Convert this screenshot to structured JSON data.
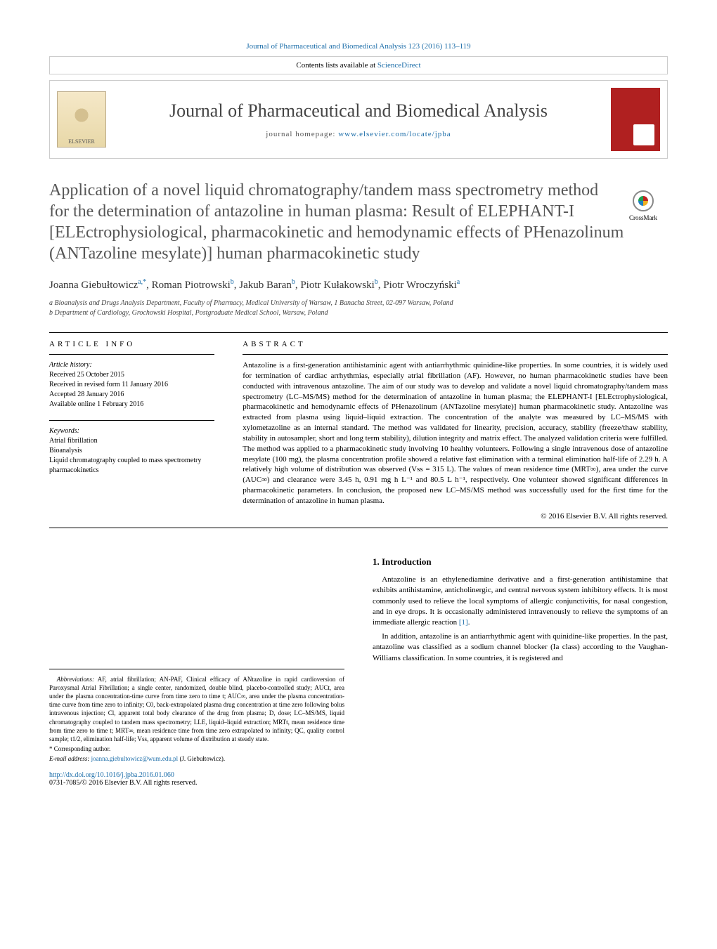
{
  "colors": {
    "link": "#1a6ca8",
    "title_gray": "#555555",
    "cover_red": "#b02020",
    "text": "#000000"
  },
  "typography": {
    "body_font": "Georgia, Times New Roman, serif",
    "journal_name_size": 26,
    "article_title_size": 24,
    "body_size": 11,
    "footnote_size": 9
  },
  "header": {
    "running_head": "Journal of Pharmaceutical and Biomedical Analysis 123 (2016) 113–119",
    "contents_prefix": "Contents lists available at ",
    "contents_link": "ScienceDirect",
    "journal_name": "Journal of Pharmaceutical and Biomedical Analysis",
    "homepage_prefix": "journal homepage: ",
    "homepage_link": "www.elsevier.com/locate/jpba",
    "publisher_logo_text": "ELSEVIER",
    "crossmark_label": "CrossMark"
  },
  "article": {
    "title": "Application of a novel liquid chromatography/tandem mass spectrometry method for the determination of antazoline in human plasma: Result of ELEPHANT-I [ELEctrophysiological, pharmacokinetic and hemodynamic effects of PHenazolinum (ANTazoline mesylate)] human pharmacokinetic study",
    "authors_html": "Joanna Giebułtowicz<sup>a,*</sup>, Roman Piotrowski<sup>b</sup>, Jakub Baran<sup>b</sup>, Piotr Kułakowski<sup>b</sup>, Piotr Wroczyński<sup>a</sup>",
    "affiliations": [
      "a Bioanalysis and Drugs Analysis Department, Faculty of Pharmacy, Medical University of Warsaw, 1 Banacha Street, 02-097 Warsaw, Poland",
      "b Department of Cardiology, Grochowski Hospital, Postgraduate Medical School, Warsaw, Poland"
    ]
  },
  "article_info": {
    "heading": "ARTICLE INFO",
    "history_label": "Article history:",
    "history": [
      "Received 25 October 2015",
      "Received in revised form 11 January 2016",
      "Accepted 28 January 2016",
      "Available online 1 February 2016"
    ],
    "keywords_label": "Keywords:",
    "keywords": [
      "Atrial fibrillation",
      "Bioanalysis",
      "Liquid chromatography coupled to mass spectrometry pharmacokinetics"
    ]
  },
  "abstract": {
    "heading": "ABSTRACT",
    "text": "Antazoline is a first-generation antihistaminic agent with antiarrhythmic quinidine-like properties. In some countries, it is widely used for termination of cardiac arrhythmias, especially atrial fibrillation (AF). However, no human pharmacokinetic studies have been conducted with intravenous antazoline. The aim of our study was to develop and validate a novel liquid chromatography/tandem mass spectrometry (LC–MS/MS) method for the determination of antazoline in human plasma; the ELEPHANT-I [ELEctrophysiological, pharmacokinetic and hemodynamic effects of PHenazolinum (ANTazoline mesylate)] human pharmacokinetic study. Antazoline was extracted from plasma using liquid–liquid extraction. The concentration of the analyte was measured by LC–MS/MS with xylometazoline as an internal standard. The method was validated for linearity, precision, accuracy, stability (freeze/thaw stability, stability in autosampler, short and long term stability), dilution integrity and matrix effect. The analyzed validation criteria were fulfilled. The method was applied to a pharmacokinetic study involving 10 healthy volunteers. Following a single intravenous dose of antazoline mesylate (100 mg), the plasma concentration profile showed a relative fast elimination with a terminal elimination half-life of 2.29 h. A relatively high volume of distribution was observed (Vss = 315 L). The values of mean residence time (MRT∞), area under the curve (AUC∞) and clearance were 3.45 h, 0.91 mg h L⁻¹ and 80.5 L h⁻¹, respectively. One volunteer showed significant differences in pharmacokinetic parameters. In conclusion, the proposed new LC–MS/MS method was successfully used for the first time for the determination of antazoline in human plasma.",
    "copyright": "© 2016 Elsevier B.V. All rights reserved."
  },
  "introduction": {
    "heading": "1. Introduction",
    "paragraphs": [
      "Antazoline is an ethylenediamine derivative and a first-generation antihistamine that exhibits antihistamine, anticholinergic, and central nervous system inhibitory effects. It is most commonly used to relieve the local symptoms of allergic conjunctivitis, for nasal congestion, and in eye drops. It is occasionally administered intravenously to relieve the symptoms of an immediate allergic reaction [1].",
      "In addition, antazoline is an antiarrhythmic agent with quinidine-like properties. In the past, antazoline was classified as a sodium channel blocker (Ia class) according to the Vaughan-Williams classification. In some countries, it is registered and"
    ]
  },
  "footnotes": {
    "abbreviations_label": "Abbreviations:",
    "abbreviations_text": "AF, atrial fibrillation; AN-PAF, Clinical efficacy of ANtazoline in rapid cardioversion of Paroxysmal Atrial Fibrillation; a single center, randomized, double blind, placebo-controlled study; AUCt, area under the plasma concentration-time curve from time zero to time t; AUC∞, area under the plasma concentration-time curve from time zero to infinity; C0, back-extrapolated plasma drug concentration at time zero following bolus intravenous injection; Cl, apparent total body clearance of the drug from plasma; D, dose; LC–MS/MS, liquid chromatography coupled to tandem mass spectrometry; LLE, liquid–liquid extraction; MRTt, mean residence time from time zero to time t; MRT∞, mean residence time from time zero extrapolated to infinity; QC, quality control sample; t1/2, elimination half-life; Vss, apparent volume of distribution at steady state.",
    "corresponding": "* Corresponding author.",
    "email_label": "E-mail address:",
    "email": "joanna.giebultowicz@wum.edu.pl",
    "email_suffix": "(J. Giebułtowicz).",
    "doi_link": "http://dx.doi.org/10.1016/j.jpba.2016.01.060",
    "issn_line": "0731-7085/© 2016 Elsevier B.V. All rights reserved."
  }
}
